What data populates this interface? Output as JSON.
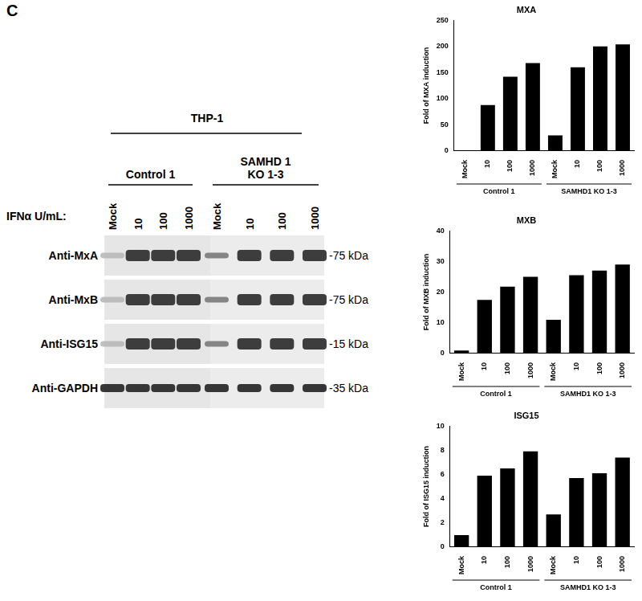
{
  "panel_label": "C",
  "blot": {
    "cell_line": "THP-1",
    "treatment_label": "IFNα U/mL:",
    "groups": [
      {
        "name": "Control 1",
        "lanes": [
          "Mock",
          "10",
          "100",
          "1000"
        ]
      },
      {
        "name": "SAMHD 1 KO 1-3",
        "lanes": [
          "Mock",
          "10",
          "100",
          "1000"
        ]
      }
    ],
    "rows": [
      {
        "antibody": "Anti-MxA",
        "size": "-75 kDa"
      },
      {
        "antibody": "Anti-MxB",
        "size": "-75 kDa"
      },
      {
        "antibody": "Anti-ISG15",
        "size": "-15 kDa"
      },
      {
        "antibody": "Anti-GAPDH",
        "size": "-35 kDa"
      }
    ]
  },
  "chart_data": [
    {
      "type": "bar",
      "title": "MXA",
      "y_label": "Fold of MXA induction",
      "categories": [
        "Mock",
        "10",
        "100",
        "1000",
        "Mock",
        "10",
        "100",
        "1000"
      ],
      "groups": [
        "Control 1",
        "SAMHD1 KO 1-3"
      ],
      "values": [
        1,
        88,
        142,
        168,
        30,
        160,
        200,
        204
      ],
      "color": "#000000",
      "ylim": [
        0,
        250
      ],
      "yticks": [
        0,
        50,
        100,
        150,
        200,
        250
      ],
      "grid": false
    },
    {
      "type": "bar",
      "title": "MXB",
      "y_label": "Fold of MXB induction",
      "categories": [
        "Mock",
        "10",
        "100",
        "1000",
        "Mock",
        "10",
        "100",
        "1000"
      ],
      "groups": [
        "Control 1",
        "SAMHD1 KO 1-3"
      ],
      "values": [
        1,
        17.5,
        21.8,
        25,
        11,
        25.5,
        27,
        29
      ],
      "color": "#000000",
      "ylim": [
        0,
        40
      ],
      "yticks": [
        0,
        10,
        20,
        30,
        40
      ],
      "grid": false
    },
    {
      "type": "bar",
      "title": "ISG15",
      "y_label": "Fold of ISG15 induction",
      "categories": [
        "Mock",
        "10",
        "100",
        "1000",
        "Mock",
        "10",
        "100",
        "1000"
      ],
      "groups": [
        "Control 1",
        "SAMHD1 KO 1-3"
      ],
      "values": [
        1,
        5.9,
        6.5,
        7.9,
        2.7,
        5.7,
        6.1,
        7.4
      ],
      "color": "#000000",
      "ylim": [
        0,
        10
      ],
      "yticks": [
        0,
        2,
        4,
        6,
        8,
        10
      ],
      "grid": false
    }
  ]
}
